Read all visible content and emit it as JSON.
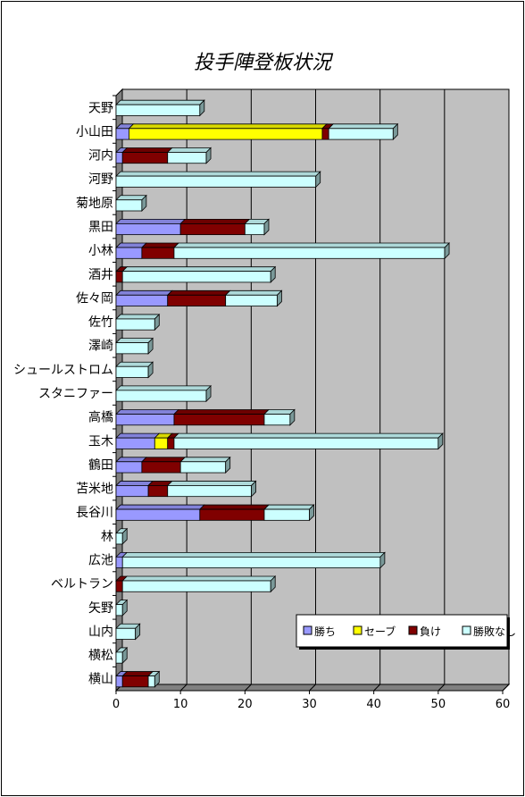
{
  "chart_data": {
    "type": "bar",
    "orientation": "horizontal",
    "stacked": true,
    "title": "投手陣登板状況",
    "xlabel": "",
    "ylabel": "",
    "xlim": [
      0,
      60
    ],
    "xticks": [
      0,
      10,
      20,
      30,
      40,
      50,
      60
    ],
    "grid": true,
    "legend_position": "bottom-right",
    "categories": [
      "天野",
      "小山田",
      "河内",
      "河野",
      "菊地原",
      "黒田",
      "小林",
      "酒井",
      "佐々岡",
      "佐竹",
      "澤崎",
      "シュールストロム",
      "スタニファー",
      "高橋",
      "玉木",
      "鶴田",
      "苫米地",
      "長谷川",
      "林",
      "広池",
      "ベルトラン",
      "矢野",
      "山内",
      "横松",
      "横山"
    ],
    "series": [
      {
        "name": "勝ち",
        "color": "#9999ff",
        "values": [
          0,
          2,
          1,
          0,
          0,
          10,
          4,
          0,
          8,
          0,
          0,
          0,
          0,
          9,
          6,
          4,
          5,
          13,
          0,
          1,
          0,
          0,
          0,
          0,
          1
        ]
      },
      {
        "name": "セーブ",
        "color": "#ffff00",
        "values": [
          0,
          30,
          0,
          0,
          0,
          0,
          0,
          0,
          0,
          0,
          0,
          0,
          0,
          0,
          2,
          0,
          0,
          0,
          0,
          0,
          0,
          0,
          0,
          0,
          0
        ]
      },
      {
        "name": "負け",
        "color": "#800000",
        "values": [
          0,
          1,
          7,
          0,
          0,
          10,
          5,
          1,
          9,
          0,
          0,
          0,
          0,
          14,
          1,
          6,
          3,
          10,
          0,
          0,
          1,
          0,
          0,
          0,
          4
        ]
      },
      {
        "name": "勝敗なし",
        "color": "#ccffff",
        "values": [
          13,
          10,
          6,
          31,
          4,
          3,
          42,
          23,
          8,
          6,
          5,
          5,
          14,
          4,
          41,
          7,
          13,
          7,
          1,
          40,
          23,
          1,
          3,
          1,
          1
        ]
      }
    ]
  },
  "colors": {
    "plot_wall": "#c0c0c0",
    "wall_side": "#808080",
    "floor": "#808080"
  }
}
